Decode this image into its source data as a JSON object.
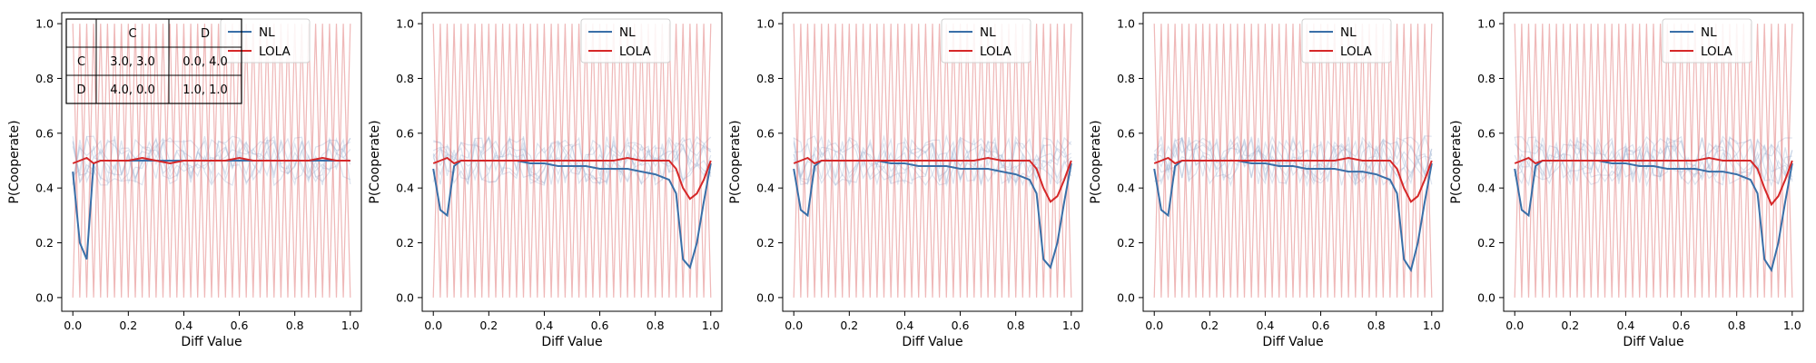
{
  "chart_data": [
    {
      "type": "line",
      "xlabel": "Diff Value",
      "ylabel": "P(Cooperate)",
      "xlim": [
        -0.04,
        1.04
      ],
      "ylim": [
        -0.05,
        1.04
      ],
      "xticks": [
        "0.0",
        "0.2",
        "0.4",
        "0.6",
        "0.8",
        "1.0"
      ],
      "yticks": [
        "0.0",
        "0.2",
        "0.4",
        "0.6",
        "0.8",
        "1.0"
      ],
      "legend": {
        "position": "top-center",
        "entries": [
          "NL",
          "LOLA"
        ]
      },
      "payoff_table": {
        "header": [
          "",
          "C",
          "D"
        ],
        "rows": [
          [
            "C",
            "3.0, 3.0",
            "0.0, 4.0"
          ],
          [
            "D",
            "4.0, 0.0",
            "1.0, 1.0"
          ]
        ]
      },
      "series": [
        {
          "name": "NL",
          "color": "#3a6fa8",
          "x": [
            0.0,
            0.025,
            0.05,
            0.075,
            0.1,
            0.15,
            0.2,
            0.25,
            0.3,
            0.35,
            0.4,
            0.45,
            0.5,
            0.55,
            0.6,
            0.65,
            0.7,
            0.75,
            0.8,
            0.85,
            0.9,
            0.95,
            1.0
          ],
          "y": [
            0.46,
            0.2,
            0.14,
            0.49,
            0.5,
            0.5,
            0.5,
            0.5,
            0.5,
            0.5,
            0.5,
            0.5,
            0.5,
            0.5,
            0.5,
            0.5,
            0.5,
            0.5,
            0.5,
            0.5,
            0.5,
            0.5,
            0.5
          ]
        },
        {
          "name": "LOLA",
          "color": "#d62728",
          "x": [
            0.0,
            0.025,
            0.05,
            0.075,
            0.1,
            0.15,
            0.2,
            0.25,
            0.3,
            0.35,
            0.4,
            0.45,
            0.5,
            0.55,
            0.6,
            0.65,
            0.7,
            0.75,
            0.8,
            0.85,
            0.9,
            0.95,
            1.0
          ],
          "y": [
            0.49,
            0.5,
            0.51,
            0.49,
            0.5,
            0.5,
            0.5,
            0.51,
            0.5,
            0.49,
            0.5,
            0.5,
            0.5,
            0.5,
            0.51,
            0.5,
            0.5,
            0.5,
            0.5,
            0.5,
            0.51,
            0.5,
            0.5
          ]
        }
      ]
    },
    {
      "type": "line",
      "xlabel": "Diff Value",
      "ylabel": "P(Cooperate)",
      "xlim": [
        -0.04,
        1.04
      ],
      "ylim": [
        -0.05,
        1.04
      ],
      "xticks": [
        "0.0",
        "0.2",
        "0.4",
        "0.6",
        "0.8",
        "1.0"
      ],
      "yticks": [
        "0.0",
        "0.2",
        "0.4",
        "0.6",
        "0.8",
        "1.0"
      ],
      "legend": {
        "position": "top-center",
        "entries": [
          "NL",
          "LOLA"
        ]
      },
      "series": [
        {
          "name": "NL",
          "color": "#3a6fa8",
          "x": [
            0.0,
            0.025,
            0.05,
            0.075,
            0.1,
            0.15,
            0.2,
            0.25,
            0.3,
            0.35,
            0.4,
            0.45,
            0.5,
            0.55,
            0.6,
            0.65,
            0.7,
            0.75,
            0.8,
            0.85,
            0.875,
            0.9,
            0.925,
            0.95,
            0.975,
            1.0
          ],
          "y": [
            0.47,
            0.32,
            0.3,
            0.48,
            0.5,
            0.5,
            0.5,
            0.5,
            0.5,
            0.49,
            0.49,
            0.48,
            0.48,
            0.48,
            0.47,
            0.47,
            0.47,
            0.46,
            0.45,
            0.43,
            0.38,
            0.14,
            0.11,
            0.2,
            0.35,
            0.49
          ]
        },
        {
          "name": "LOLA",
          "color": "#d62728",
          "x": [
            0.0,
            0.025,
            0.05,
            0.075,
            0.1,
            0.15,
            0.2,
            0.25,
            0.3,
            0.35,
            0.4,
            0.45,
            0.5,
            0.55,
            0.6,
            0.65,
            0.7,
            0.75,
            0.8,
            0.85,
            0.875,
            0.9,
            0.925,
            0.95,
            0.975,
            1.0
          ],
          "y": [
            0.49,
            0.5,
            0.51,
            0.49,
            0.5,
            0.5,
            0.5,
            0.5,
            0.5,
            0.5,
            0.5,
            0.5,
            0.5,
            0.5,
            0.5,
            0.5,
            0.51,
            0.5,
            0.5,
            0.5,
            0.47,
            0.4,
            0.36,
            0.38,
            0.43,
            0.5
          ]
        }
      ]
    },
    {
      "type": "line",
      "xlabel": "Diff Value",
      "ylabel": "P(Cooperate)",
      "xlim": [
        -0.04,
        1.04
      ],
      "ylim": [
        -0.05,
        1.04
      ],
      "xticks": [
        "0.0",
        "0.2",
        "0.4",
        "0.6",
        "0.8",
        "1.0"
      ],
      "yticks": [
        "0.0",
        "0.2",
        "0.4",
        "0.6",
        "0.8",
        "1.0"
      ],
      "legend": {
        "position": "top-center",
        "entries": [
          "NL",
          "LOLA"
        ]
      },
      "series": [
        {
          "name": "NL",
          "color": "#3a6fa8",
          "x": [
            0.0,
            0.025,
            0.05,
            0.075,
            0.1,
            0.15,
            0.2,
            0.25,
            0.3,
            0.35,
            0.4,
            0.45,
            0.5,
            0.55,
            0.6,
            0.65,
            0.7,
            0.75,
            0.8,
            0.85,
            0.875,
            0.9,
            0.925,
            0.95,
            0.975,
            1.0
          ],
          "y": [
            0.47,
            0.32,
            0.3,
            0.48,
            0.5,
            0.5,
            0.5,
            0.5,
            0.5,
            0.49,
            0.49,
            0.48,
            0.48,
            0.48,
            0.47,
            0.47,
            0.47,
            0.46,
            0.45,
            0.43,
            0.38,
            0.14,
            0.11,
            0.2,
            0.35,
            0.49
          ]
        },
        {
          "name": "LOLA",
          "color": "#d62728",
          "x": [
            0.0,
            0.025,
            0.05,
            0.075,
            0.1,
            0.15,
            0.2,
            0.25,
            0.3,
            0.35,
            0.4,
            0.45,
            0.5,
            0.55,
            0.6,
            0.65,
            0.7,
            0.75,
            0.8,
            0.85,
            0.875,
            0.9,
            0.925,
            0.95,
            0.975,
            1.0
          ],
          "y": [
            0.49,
            0.5,
            0.51,
            0.49,
            0.5,
            0.5,
            0.5,
            0.5,
            0.5,
            0.5,
            0.5,
            0.5,
            0.5,
            0.5,
            0.5,
            0.5,
            0.51,
            0.5,
            0.5,
            0.5,
            0.47,
            0.4,
            0.35,
            0.37,
            0.43,
            0.5
          ]
        }
      ]
    },
    {
      "type": "line",
      "xlabel": "Diff Value",
      "ylabel": "P(Cooperate)",
      "xlim": [
        -0.04,
        1.04
      ],
      "ylim": [
        -0.05,
        1.04
      ],
      "xticks": [
        "0.0",
        "0.2",
        "0.4",
        "0.6",
        "0.8",
        "1.0"
      ],
      "yticks": [
        "0.0",
        "0.2",
        "0.4",
        "0.6",
        "0.8",
        "1.0"
      ],
      "legend": {
        "position": "top-center",
        "entries": [
          "NL",
          "LOLA"
        ]
      },
      "series": [
        {
          "name": "NL",
          "color": "#3a6fa8",
          "x": [
            0.0,
            0.025,
            0.05,
            0.075,
            0.1,
            0.15,
            0.2,
            0.25,
            0.3,
            0.35,
            0.4,
            0.45,
            0.5,
            0.55,
            0.6,
            0.65,
            0.7,
            0.75,
            0.8,
            0.85,
            0.875,
            0.9,
            0.925,
            0.95,
            0.975,
            1.0
          ],
          "y": [
            0.47,
            0.32,
            0.3,
            0.48,
            0.5,
            0.5,
            0.5,
            0.5,
            0.5,
            0.49,
            0.49,
            0.48,
            0.48,
            0.47,
            0.47,
            0.47,
            0.46,
            0.46,
            0.45,
            0.43,
            0.38,
            0.14,
            0.1,
            0.2,
            0.35,
            0.49
          ]
        },
        {
          "name": "LOLA",
          "color": "#d62728",
          "x": [
            0.0,
            0.025,
            0.05,
            0.075,
            0.1,
            0.15,
            0.2,
            0.25,
            0.3,
            0.35,
            0.4,
            0.45,
            0.5,
            0.55,
            0.6,
            0.65,
            0.7,
            0.75,
            0.8,
            0.85,
            0.875,
            0.9,
            0.925,
            0.95,
            0.975,
            1.0
          ],
          "y": [
            0.49,
            0.5,
            0.51,
            0.49,
            0.5,
            0.5,
            0.5,
            0.5,
            0.5,
            0.5,
            0.5,
            0.5,
            0.5,
            0.5,
            0.5,
            0.5,
            0.51,
            0.5,
            0.5,
            0.5,
            0.47,
            0.4,
            0.35,
            0.37,
            0.43,
            0.5
          ]
        }
      ]
    },
    {
      "type": "line",
      "xlabel": "Diff Value",
      "ylabel": "P(Cooperate)",
      "xlim": [
        -0.04,
        1.04
      ],
      "ylim": [
        -0.05,
        1.04
      ],
      "xticks": [
        "0.0",
        "0.2",
        "0.4",
        "0.6",
        "0.8",
        "1.0"
      ],
      "yticks": [
        "0.0",
        "0.2",
        "0.4",
        "0.6",
        "0.8",
        "1.0"
      ],
      "legend": {
        "position": "top-center",
        "entries": [
          "NL",
          "LOLA"
        ]
      },
      "series": [
        {
          "name": "NL",
          "color": "#3a6fa8",
          "x": [
            0.0,
            0.025,
            0.05,
            0.075,
            0.1,
            0.15,
            0.2,
            0.25,
            0.3,
            0.35,
            0.4,
            0.45,
            0.5,
            0.55,
            0.6,
            0.65,
            0.7,
            0.75,
            0.8,
            0.85,
            0.875,
            0.9,
            0.925,
            0.95,
            0.975,
            1.0
          ],
          "y": [
            0.47,
            0.32,
            0.3,
            0.48,
            0.5,
            0.5,
            0.5,
            0.5,
            0.5,
            0.49,
            0.49,
            0.48,
            0.48,
            0.47,
            0.47,
            0.47,
            0.46,
            0.46,
            0.45,
            0.43,
            0.38,
            0.14,
            0.1,
            0.2,
            0.35,
            0.49
          ]
        },
        {
          "name": "LOLA",
          "color": "#d62728",
          "x": [
            0.0,
            0.025,
            0.05,
            0.075,
            0.1,
            0.15,
            0.2,
            0.25,
            0.3,
            0.35,
            0.4,
            0.45,
            0.5,
            0.55,
            0.6,
            0.65,
            0.7,
            0.75,
            0.8,
            0.85,
            0.875,
            0.9,
            0.925,
            0.95,
            0.975,
            1.0
          ],
          "y": [
            0.49,
            0.5,
            0.51,
            0.49,
            0.5,
            0.5,
            0.5,
            0.5,
            0.5,
            0.5,
            0.5,
            0.5,
            0.5,
            0.5,
            0.5,
            0.5,
            0.51,
            0.5,
            0.5,
            0.5,
            0.47,
            0.4,
            0.34,
            0.37,
            0.43,
            0.5
          ]
        }
      ]
    }
  ]
}
